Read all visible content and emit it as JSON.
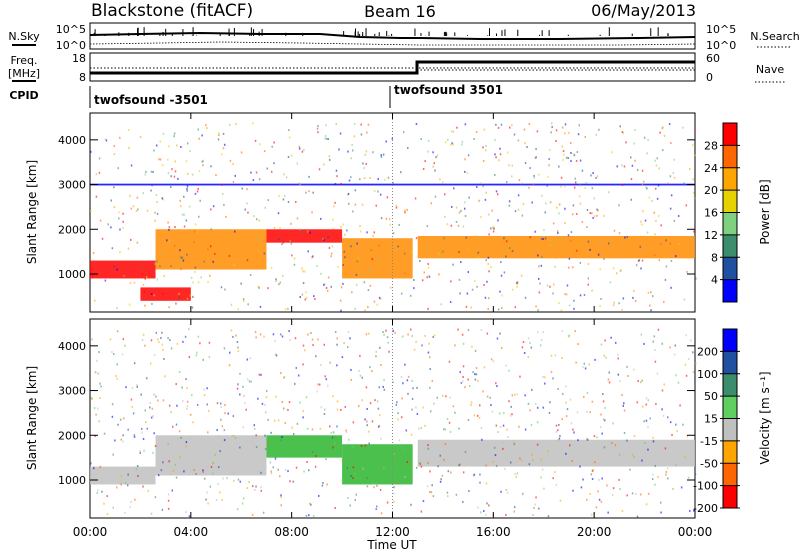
{
  "header": {
    "station": "Blackstone (fitACF)",
    "beam": "Beam 16",
    "date": "06/May/2013"
  },
  "top_panel": {
    "left_label": "N.Sky",
    "left_ticks": [
      "10^5",
      "10^0"
    ],
    "right_ticks": [
      "10^5",
      "10^0"
    ],
    "right_label": "N.Search"
  },
  "freq_panel": {
    "left_label_1": "Freq.",
    "left_label_2": "[MHz]",
    "left_ticks": [
      "18",
      "8"
    ],
    "right_ticks": [
      "60",
      "0"
    ],
    "right_label": "Nave"
  },
  "cpid_panel": {
    "label": "CPID",
    "segments": [
      {
        "label": "twofsound -3501"
      },
      {
        "label": "twofsound 3501"
      }
    ]
  },
  "colors": {
    "red": "#ff0000",
    "orange": "#ff8c00",
    "yellow": "#ffff00",
    "green": "#2db52d",
    "teal": "#3c8c6e",
    "blue": "#0000ff",
    "gray": "#c0c0c0"
  },
  "chart_data": [
    {
      "type": "heatmap",
      "name": "power",
      "ylabel": "Slant Range [km]",
      "y_ticks": [
        1000,
        2000,
        3000,
        4000
      ],
      "ylim": [
        150,
        4600
      ],
      "colorbar_label": "Power [dB]",
      "colorbar_ticks": [
        "28",
        "24",
        "20",
        "16",
        "12",
        "8",
        "4"
      ],
      "colorbar_colors": [
        "#ff0000",
        "#ff6600",
        "#ffa500",
        "#e6d200",
        "#7fd07f",
        "#3c8c6e",
        "#2050a0",
        "#0000ff"
      ],
      "bands": [
        {
          "t0": 0,
          "t1": 2.6,
          "r0": 900,
          "r1": 1300,
          "value": "red"
        },
        {
          "t0": 2.6,
          "t1": 7.0,
          "r0": 1100,
          "r1": 2000,
          "value": "orange"
        },
        {
          "t0": 7.0,
          "t1": 10.0,
          "r0": 1700,
          "r1": 2000,
          "value": "red"
        },
        {
          "t0": 10.0,
          "t1": 12.8,
          "r0": 900,
          "r1": 1800,
          "value": "orange"
        },
        {
          "t0": 13.0,
          "t1": 24.0,
          "r0": 1350,
          "r1": 1850,
          "value": "orange"
        },
        {
          "t0": 2.0,
          "t1": 4.0,
          "r0": 400,
          "r1": 700,
          "value": "red"
        },
        {
          "t0": 0,
          "t1": 24,
          "r0": 2980,
          "r1": 3020,
          "value": "blue"
        }
      ]
    },
    {
      "type": "heatmap",
      "name": "velocity",
      "xlabel": "Time UT",
      "ylabel": "Slant Range [km]",
      "x_ticks": [
        "00:00",
        "04:00",
        "08:00",
        "12:00",
        "16:00",
        "20:00",
        "00:00"
      ],
      "y_ticks": [
        1000,
        2000,
        3000,
        4000
      ],
      "ylim": [
        150,
        4600
      ],
      "colorbar_label": "Velocity [m s⁻¹]",
      "colorbar_ticks": [
        "200",
        "100",
        "50",
        "15",
        "-15",
        "-50",
        "-100",
        "-200"
      ],
      "colorbar_colors": [
        "#0000ff",
        "#2050a0",
        "#3c8c6e",
        "#5fd05f",
        "#c0c0c0",
        "#ffa500",
        "#ff6600",
        "#ff0000"
      ],
      "bands": [
        {
          "t0": 0,
          "t1": 2.6,
          "r0": 900,
          "r1": 1300,
          "value": "gray"
        },
        {
          "t0": 2.6,
          "t1": 7.0,
          "r0": 1100,
          "r1": 2000,
          "value": "gray"
        },
        {
          "t0": 7.0,
          "t1": 10.0,
          "r0": 1500,
          "r1": 2000,
          "value": "green"
        },
        {
          "t0": 10.0,
          "t1": 12.8,
          "r0": 900,
          "r1": 1800,
          "value": "green"
        },
        {
          "t0": 13.0,
          "t1": 24.0,
          "r0": 1300,
          "r1": 1900,
          "value": "gray"
        }
      ]
    }
  ]
}
